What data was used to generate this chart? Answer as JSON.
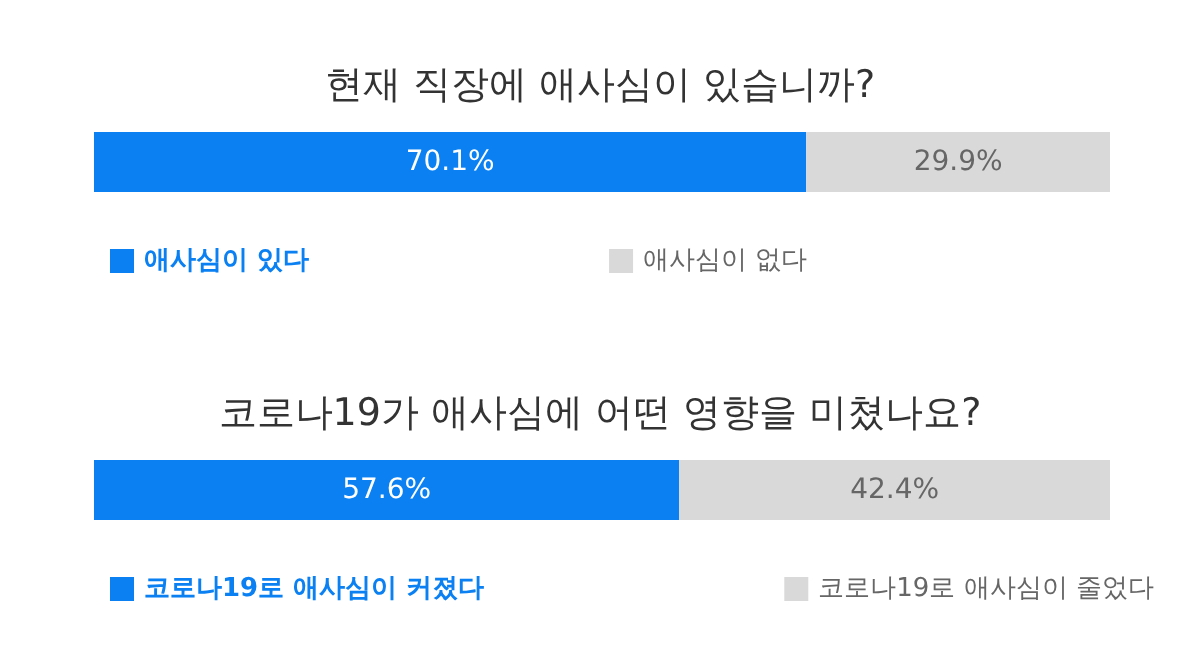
{
  "chart_data": [
    {
      "type": "bar",
      "title": "현재 직장에 애사심이 있습니까?",
      "orientation": "horizontal",
      "stacked": true,
      "categories": [
        null
      ],
      "xlim": [
        0,
        100
      ],
      "legend": "bottom left",
      "series": [
        {
          "name": "애사심이 있다",
          "color": "#0a80f2",
          "values": [
            70.1
          ],
          "value_labels": [
            "70.1%"
          ]
        },
        {
          "name": "애사심이 없다",
          "color": "#d9d9d9",
          "values": [
            29.9
          ],
          "value_labels": [
            "29.9%"
          ]
        }
      ]
    },
    {
      "type": "bar",
      "title": "코로나19가 애사심에 어떤 영향을 미쳤나요?",
      "orientation": "horizontal",
      "stacked": true,
      "categories": [
        null
      ],
      "xlim": [
        0,
        100
      ],
      "legend": "bottom left",
      "series": [
        {
          "name": "코로나19로 애사심이 커졌다",
          "color": "#0a80f2",
          "values": [
            57.6
          ],
          "value_labels": [
            "57.6%"
          ]
        },
        {
          "name": "코로나19로 애사심이 줄었다",
          "color": "#d9d9d9",
          "values": [
            42.4
          ],
          "value_labels": [
            "42.4%"
          ]
        }
      ]
    }
  ]
}
